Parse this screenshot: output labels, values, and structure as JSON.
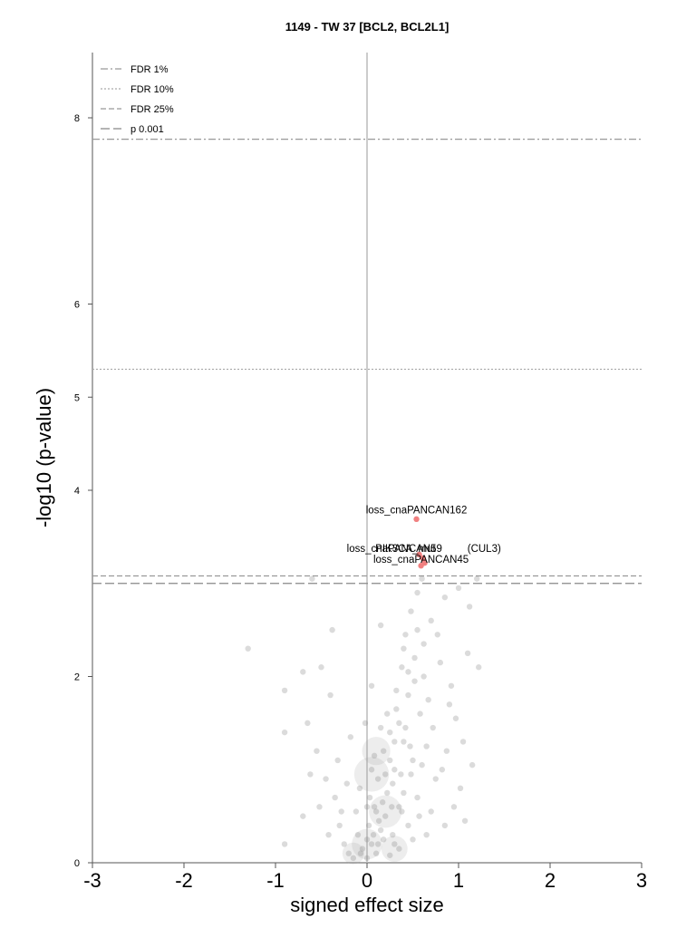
{
  "chart_data": {
    "type": "scatter",
    "title": "1149 - TW 37 [BCL2, BCL2L1]",
    "xlabel": "signed effect size",
    "ylabel": "-log10 (p-value)",
    "xlim": [
      -3,
      3
    ],
    "ylim": [
      0,
      8
    ],
    "x_ticks": [
      "-3",
      "-2",
      "-1",
      "0",
      "1",
      "2",
      "3"
    ],
    "y_ticks": [
      "0",
      "2",
      "4",
      "5",
      "6",
      "8"
    ],
    "grid": false,
    "legend_placement": "top-left",
    "thresholds": [
      {
        "label": "FDR 1%",
        "y": 7.77,
        "style": "dashdot",
        "color": "#999999"
      },
      {
        "label": "FDR 10%",
        "y": 5.3,
        "style": "dotted",
        "color": "#aaaaaa"
      },
      {
        "label": "FDR 25%",
        "y": 3.08,
        "style": "dashed",
        "color": "#999999"
      },
      {
        "label": "p 0.001",
        "y": 3.0,
        "style": "longdash",
        "color": "#888888"
      }
    ],
    "highlighted_points": [
      {
        "label": "loss_cnaPANCAN162",
        "x": 0.54,
        "y": 3.69,
        "color": "#f08080"
      },
      {
        "label": "loss_cnaPANCAN59",
        "x": 0.57,
        "y": 3.31,
        "color": "#f08080"
      },
      {
        "label": "PIK3CA_mut",
        "x": 0.61,
        "y": 3.27,
        "color": "#f08080"
      },
      {
        "label": "(CUL3)",
        "x": 0.63,
        "y": 3.22,
        "color": "#f08080"
      },
      {
        "label": "loss_cnaPANCAN45",
        "x": 0.59,
        "y": 3.19,
        "color": "#f08080"
      }
    ],
    "point_labels": [
      {
        "text": "loss_cnaPANCAN162",
        "x": 0.54,
        "y": 3.75
      },
      {
        "text": "loss_cnaPANCAN59",
        "x": 0.3,
        "y": 3.34
      },
      {
        "text": "PIK3CA_mut",
        "x": 0.42,
        "y": 3.34
      },
      {
        "text": "(CUL3)",
        "x": 1.28,
        "y": 3.34
      },
      {
        "text": "loss_cnaPANCAN45",
        "x": 0.59,
        "y": 3.22
      }
    ],
    "background_points": [
      {
        "x": -1.3,
        "y": 2.3
      },
      {
        "x": -0.9,
        "y": 1.85
      },
      {
        "x": -0.9,
        "y": 1.4
      },
      {
        "x": -0.65,
        "y": 1.5
      },
      {
        "x": -0.7,
        "y": 0.5
      },
      {
        "x": -0.9,
        "y": 0.2
      },
      {
        "x": -0.38,
        "y": 2.5
      },
      {
        "x": -0.5,
        "y": 2.1
      },
      {
        "x": -0.6,
        "y": 3.05
      },
      {
        "x": -0.7,
        "y": 2.05
      },
      {
        "x": -0.4,
        "y": 1.8
      },
      {
        "x": -0.55,
        "y": 1.2
      },
      {
        "x": -0.45,
        "y": 0.9
      },
      {
        "x": -0.35,
        "y": 0.7
      },
      {
        "x": -0.3,
        "y": 0.4
      },
      {
        "x": -0.25,
        "y": 0.2
      },
      {
        "x": -0.2,
        "y": 0.1
      },
      {
        "x": -0.15,
        "y": 0.05
      },
      {
        "x": -0.1,
        "y": 0.3
      },
      {
        "x": -0.05,
        "y": 0.15
      },
      {
        "x": 0.0,
        "y": 0.05
      },
      {
        "x": 0.02,
        "y": 0.4
      },
      {
        "x": 0.05,
        "y": 0.2
      },
      {
        "x": 0.08,
        "y": 0.6
      },
      {
        "x": 0.1,
        "y": 0.1
      },
      {
        "x": 0.12,
        "y": 0.9
      },
      {
        "x": 0.15,
        "y": 0.35
      },
      {
        "x": 0.18,
        "y": 1.2
      },
      {
        "x": 0.2,
        "y": 0.5
      },
      {
        "x": 0.22,
        "y": 0.75
      },
      {
        "x": 0.25,
        "y": 1.4
      },
      {
        "x": 0.28,
        "y": 0.3
      },
      {
        "x": 0.3,
        "y": 1.0
      },
      {
        "x": 0.32,
        "y": 1.65
      },
      {
        "x": 0.35,
        "y": 0.6
      },
      {
        "x": 0.38,
        "y": 2.1
      },
      {
        "x": 0.4,
        "y": 1.3
      },
      {
        "x": 0.42,
        "y": 2.45
      },
      {
        "x": 0.45,
        "y": 1.8
      },
      {
        "x": 0.48,
        "y": 2.7
      },
      {
        "x": 0.5,
        "y": 1.1
      },
      {
        "x": 0.52,
        "y": 2.2
      },
      {
        "x": 0.55,
        "y": 2.9
      },
      {
        "x": 0.58,
        "y": 1.6
      },
      {
        "x": 0.6,
        "y": 3.05
      },
      {
        "x": 0.62,
        "y": 2.0
      },
      {
        "x": 0.65,
        "y": 1.25
      },
      {
        "x": 0.7,
        "y": 2.6
      },
      {
        "x": 0.75,
        "y": 0.9
      },
      {
        "x": 0.8,
        "y": 2.15
      },
      {
        "x": 0.85,
        "y": 2.85
      },
      {
        "x": 0.9,
        "y": 1.7
      },
      {
        "x": 0.95,
        "y": 0.6
      },
      {
        "x": 1.0,
        "y": 2.95
      },
      {
        "x": 1.05,
        "y": 1.3
      },
      {
        "x": 1.1,
        "y": 2.25
      },
      {
        "x": 1.12,
        "y": 2.75
      },
      {
        "x": 1.15,
        "y": 1.05
      },
      {
        "x": 1.2,
        "y": 3.05
      },
      {
        "x": 1.22,
        "y": 2.1
      },
      {
        "x": 0.15,
        "y": 2.55
      },
      {
        "x": 0.05,
        "y": 1.9
      },
      {
        "x": -0.02,
        "y": 1.5
      },
      {
        "x": 0.12,
        "y": 0.2
      },
      {
        "x": 0.25,
        "y": 0.08
      },
      {
        "x": 0.35,
        "y": 0.15
      },
      {
        "x": 0.45,
        "y": 0.4
      },
      {
        "x": 0.55,
        "y": 0.7
      },
      {
        "x": 0.65,
        "y": 0.3
      },
      {
        "x": 0.85,
        "y": 0.4
      },
      {
        "x": -0.12,
        "y": 0.55
      },
      {
        "x": -0.22,
        "y": 0.85
      },
      {
        "x": -0.32,
        "y": 1.1
      },
      {
        "x": -0.18,
        "y": 1.35
      },
      {
        "x": 0.08,
        "y": 1.15
      },
      {
        "x": 0.28,
        "y": 0.85
      },
      {
        "x": 0.38,
        "y": 0.55
      },
      {
        "x": 0.48,
        "y": 0.95
      },
      {
        "x": 0.22,
        "y": 1.6
      },
      {
        "x": 0.32,
        "y": 1.85
      },
      {
        "x": 0.42,
        "y": 1.45
      },
      {
        "x": 0.52,
        "y": 1.95
      },
      {
        "x": 0.62,
        "y": 2.35
      },
      {
        "x": 0.72,
        "y": 1.45
      },
      {
        "x": 0.82,
        "y": 1.0
      },
      {
        "x": 0.92,
        "y": 1.9
      },
      {
        "x": 1.02,
        "y": 0.8
      },
      {
        "x": -0.42,
        "y": 0.3
      },
      {
        "x": -0.52,
        "y": 0.6
      },
      {
        "x": -0.62,
        "y": 0.95
      },
      {
        "x": -0.28,
        "y": 0.55
      },
      {
        "x": -0.08,
        "y": 0.8
      },
      {
        "x": 0.03,
        "y": 0.7
      },
      {
        "x": 0.13,
        "y": 0.45
      },
      {
        "x": 0.18,
        "y": 0.25
      },
      {
        "x": 0.27,
        "y": 0.6
      },
      {
        "x": 0.37,
        "y": 0.95
      },
      {
        "x": 0.47,
        "y": 1.25
      },
      {
        "x": 0.57,
        "y": 0.5
      },
      {
        "x": 0.67,
        "y": 1.75
      },
      {
        "x": 0.77,
        "y": 2.45
      },
      {
        "x": 0.87,
        "y": 1.2
      },
      {
        "x": 0.97,
        "y": 1.55
      },
      {
        "x": 1.07,
        "y": 0.45
      },
      {
        "x": -0.07,
        "y": 0.1
      },
      {
        "x": 0.07,
        "y": 0.3
      },
      {
        "x": 0.17,
        "y": 0.65
      },
      {
        "x": 0.3,
        "y": 0.2
      },
      {
        "x": 0.4,
        "y": 0.75
      },
      {
        "x": 0.5,
        "y": 0.25
      },
      {
        "x": 0.6,
        "y": 1.05
      },
      {
        "x": 0.7,
        "y": 0.55
      },
      {
        "x": 0.0,
        "y": 0.25
      },
      {
        "x": 0.1,
        "y": 0.55
      },
      {
        "x": 0.2,
        "y": 0.95
      },
      {
        "x": 0.3,
        "y": 1.3
      },
      {
        "x": 0.0,
        "y": 0.6
      },
      {
        "x": 0.05,
        "y": 1.0
      },
      {
        "x": 0.15,
        "y": 1.45
      },
      {
        "x": 0.25,
        "y": 1.1
      },
      {
        "x": 0.35,
        "y": 1.5
      },
      {
        "x": 0.45,
        "y": 2.05
      },
      {
        "x": 0.55,
        "y": 2.5
      },
      {
        "x": 0.4,
        "y": 2.3
      }
    ],
    "big_bubbles": [
      {
        "x": 0.1,
        "y": 1.2,
        "r": 1.3
      },
      {
        "x": 0.05,
        "y": 0.95,
        "r": 1.6
      },
      {
        "x": 0.2,
        "y": 0.55,
        "r": 1.5
      },
      {
        "x": 0.0,
        "y": 0.2,
        "r": 1.4
      },
      {
        "x": -0.15,
        "y": 0.1,
        "r": 1.0
      },
      {
        "x": 0.3,
        "y": 0.15,
        "r": 1.2
      }
    ]
  }
}
